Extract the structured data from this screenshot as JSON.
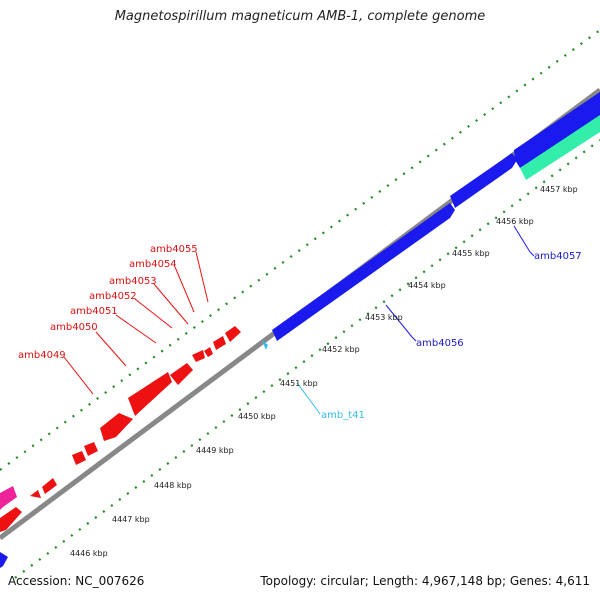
{
  "title": "Magnetospirillum magneticum AMB-1, complete genome",
  "footer": {
    "accession": "Accession: NC_007626",
    "summary": "Topology: circular; Length: 4,967,148 bp; Genes: 4,611"
  },
  "colors": {
    "backbone": "#888888",
    "ticks": "#1e8a1e",
    "forward_gene": "#1a1aee",
    "reverse_gene": "#ee1111",
    "trna": "#33bbee",
    "rrna": "#33eeaa",
    "other": "#ee2299"
  },
  "scale_labels": [
    "4446 kbp",
    "4447 kbp",
    "4448 kbp",
    "4449 kbp",
    "4450 kbp",
    "4451 kbp",
    "4452 kbp",
    "4453 kbp",
    "4454 kbp",
    "4455 kbp",
    "4456 kbp",
    "4457 kbp"
  ],
  "gene_labels": {
    "amb4049": "amb4049",
    "amb4050": "amb4050",
    "amb4051": "amb4051",
    "amb4052": "amb4052",
    "amb4053": "amb4053",
    "amb4054": "amb4054",
    "amb4055": "amb4055",
    "amb4056": "amb4056",
    "amb4057": "amb4057",
    "amb_t41": "amb_t41"
  }
}
